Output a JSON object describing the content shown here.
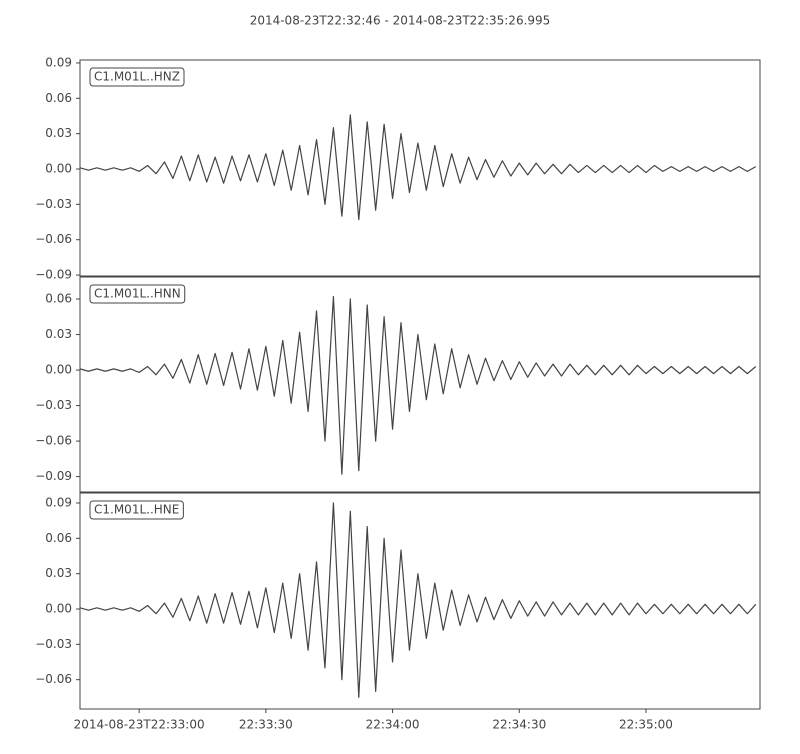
{
  "title": "2014-08-23T22:32:46  -  2014-08-23T22:35:26.995",
  "chart_data": [
    {
      "type": "line",
      "ylim": [
        -0.0908,
        0.0925
      ],
      "xlim": [
        "22:32:46",
        "22:35:26.995"
      ],
      "yticks": [
        0.09,
        0.06,
        0.03,
        {
          "value": 0,
          "label": "0.00"
        },
        {
          "value": -0.03,
          "label": "−0.03"
        },
        {
          "value": -0.06,
          "label": "−0.06"
        },
        {
          "value": -0.09,
          "label": "−0.09"
        }
      ],
      "x": [
        "22:32:46",
        "22:32:48",
        "22:32:50",
        "22:32:52",
        "22:32:54",
        "22:32:56",
        "22:32:58",
        "22:33:00",
        "22:33:02",
        "22:33:04",
        "22:33:06",
        "22:33:08",
        "22:33:10",
        "22:33:12",
        "22:33:14",
        "22:33:16",
        "22:33:18",
        "22:33:20",
        "22:33:22",
        "22:33:24",
        "22:33:26",
        "22:33:28",
        "22:33:30",
        "22:33:32",
        "22:33:34",
        "22:33:36",
        "22:33:38",
        "22:33:40",
        "22:33:42",
        "22:33:44",
        "22:33:46",
        "22:33:48",
        "22:33:50",
        "22:33:52",
        "22:33:54",
        "22:33:56",
        "22:33:58",
        "22:34:00",
        "22:34:02",
        "22:34:04",
        "22:34:06",
        "22:34:08",
        "22:34:10",
        "22:34:12",
        "22:34:14",
        "22:34:16",
        "22:34:18",
        "22:34:20",
        "22:34:22",
        "22:34:24",
        "22:34:26",
        "22:34:28",
        "22:34:30",
        "22:34:32",
        "22:34:34",
        "22:34:36",
        "22:34:38",
        "22:34:40",
        "22:34:42",
        "22:34:44",
        "22:34:46",
        "22:34:48",
        "22:34:50",
        "22:34:52",
        "22:34:54",
        "22:34:56",
        "22:34:58",
        "22:35:00",
        "22:35:02",
        "22:35:04",
        "22:35:06",
        "22:35:08",
        "22:35:10",
        "22:35:12",
        "22:35:14",
        "22:35:16",
        "22:35:18",
        "22:35:20",
        "22:35:22",
        "22:35:24",
        "22:35:26"
      ],
      "series": [
        {
          "name": "C1.M01L..HNZ",
          "color": "#444444",
          "values": [
            0.001,
            -0.001,
            0.001,
            -0.001,
            0.001,
            -0.001,
            0.001,
            -0.002,
            0.003,
            -0.004,
            0.006,
            -0.008,
            0.011,
            -0.01,
            0.012,
            -0.011,
            0.01,
            -0.012,
            0.011,
            -0.01,
            0.012,
            -0.011,
            0.013,
            -0.014,
            0.016,
            -0.018,
            0.02,
            -0.022,
            0.025,
            -0.03,
            0.035,
            -0.04,
            0.046,
            -0.043,
            0.04,
            -0.035,
            0.038,
            -0.025,
            0.03,
            -0.02,
            0.022,
            -0.018,
            0.02,
            -0.015,
            0.013,
            -0.012,
            0.01,
            -0.009,
            0.008,
            -0.007,
            0.007,
            -0.006,
            0.005,
            -0.005,
            0.005,
            -0.004,
            0.004,
            -0.004,
            0.004,
            -0.003,
            0.003,
            -0.003,
            0.003,
            -0.003,
            0.003,
            -0.003,
            0.003,
            -0.003,
            0.003,
            -0.002,
            0.002,
            -0.002,
            0.002,
            -0.002,
            0.002,
            -0.002,
            0.002,
            -0.002,
            0.002,
            -0.002,
            0.002
          ]
        }
      ]
    },
    {
      "type": "line",
      "ylim": [
        -0.103,
        0.0786
      ],
      "xlim": [
        "22:32:46",
        "22:35:26.995"
      ],
      "yticks": [
        0.06,
        0.03,
        {
          "value": 0,
          "label": "0.00"
        },
        {
          "value": -0.03,
          "label": "−0.03"
        },
        {
          "value": -0.06,
          "label": "−0.06"
        },
        {
          "value": -0.09,
          "label": "−0.09"
        }
      ],
      "x": [
        "22:32:46",
        "22:32:48",
        "22:32:50",
        "22:32:52",
        "22:32:54",
        "22:32:56",
        "22:32:58",
        "22:33:00",
        "22:33:02",
        "22:33:04",
        "22:33:06",
        "22:33:08",
        "22:33:10",
        "22:33:12",
        "22:33:14",
        "22:33:16",
        "22:33:18",
        "22:33:20",
        "22:33:22",
        "22:33:24",
        "22:33:26",
        "22:33:28",
        "22:33:30",
        "22:33:32",
        "22:33:34",
        "22:33:36",
        "22:33:38",
        "22:33:40",
        "22:33:42",
        "22:33:44",
        "22:33:46",
        "22:33:48",
        "22:33:50",
        "22:33:52",
        "22:33:54",
        "22:33:56",
        "22:33:58",
        "22:34:00",
        "22:34:02",
        "22:34:04",
        "22:34:06",
        "22:34:08",
        "22:34:10",
        "22:34:12",
        "22:34:14",
        "22:34:16",
        "22:34:18",
        "22:34:20",
        "22:34:22",
        "22:34:24",
        "22:34:26",
        "22:34:28",
        "22:34:30",
        "22:34:32",
        "22:34:34",
        "22:34:36",
        "22:34:38",
        "22:34:40",
        "22:34:42",
        "22:34:44",
        "22:34:46",
        "22:34:48",
        "22:34:50",
        "22:34:52",
        "22:34:54",
        "22:34:56",
        "22:34:58",
        "22:35:00",
        "22:35:02",
        "22:35:04",
        "22:35:06",
        "22:35:08",
        "22:35:10",
        "22:35:12",
        "22:35:14",
        "22:35:16",
        "22:35:18",
        "22:35:20",
        "22:35:22",
        "22:35:24",
        "22:35:26"
      ],
      "series": [
        {
          "name": "C1.M01L..HNN",
          "color": "#444444",
          "values": [
            0.001,
            -0.001,
            0.001,
            -0.001,
            0.001,
            -0.001,
            0.001,
            -0.002,
            0.003,
            -0.004,
            0.005,
            -0.007,
            0.009,
            -0.011,
            0.013,
            -0.012,
            0.014,
            -0.013,
            0.015,
            -0.016,
            0.018,
            -0.017,
            0.02,
            -0.022,
            0.025,
            -0.028,
            0.032,
            -0.035,
            0.05,
            -0.06,
            0.062,
            -0.088,
            0.06,
            -0.085,
            0.055,
            -0.06,
            0.045,
            -0.05,
            0.04,
            -0.035,
            0.03,
            -0.025,
            0.022,
            -0.02,
            0.018,
            -0.015,
            0.013,
            -0.012,
            0.01,
            -0.009,
            0.008,
            -0.008,
            0.007,
            -0.006,
            0.006,
            -0.005,
            0.005,
            -0.005,
            0.005,
            -0.004,
            0.004,
            -0.004,
            0.004,
            -0.004,
            0.004,
            -0.004,
            0.004,
            -0.003,
            0.003,
            -0.003,
            0.003,
            -0.003,
            0.003,
            -0.003,
            0.003,
            -0.003,
            0.003,
            -0.003,
            0.003,
            -0.003,
            0.003
          ]
        }
      ]
    },
    {
      "type": "line",
      "ylim": [
        -0.0849,
        0.0985
      ],
      "xlim": [
        "22:32:46",
        "22:35:26.995"
      ],
      "yticks": [
        0.09,
        0.06,
        0.03,
        {
          "value": 0,
          "label": "0.00"
        },
        {
          "value": -0.03,
          "label": "−0.03"
        },
        {
          "value": -0.06,
          "label": "−0.06"
        }
      ],
      "xticks": [
        {
          "value": "22:33:00",
          "label": "2014-08-23T22:33:00"
        },
        "22:33:30",
        "22:34:00",
        "22:34:30",
        "22:35:00"
      ],
      "x": [
        "22:32:46",
        "22:32:48",
        "22:32:50",
        "22:32:52",
        "22:32:54",
        "22:32:56",
        "22:32:58",
        "22:33:00",
        "22:33:02",
        "22:33:04",
        "22:33:06",
        "22:33:08",
        "22:33:10",
        "22:33:12",
        "22:33:14",
        "22:33:16",
        "22:33:18",
        "22:33:20",
        "22:33:22",
        "22:33:24",
        "22:33:26",
        "22:33:28",
        "22:33:30",
        "22:33:32",
        "22:33:34",
        "22:33:36",
        "22:33:38",
        "22:33:40",
        "22:33:42",
        "22:33:44",
        "22:33:46",
        "22:33:48",
        "22:33:50",
        "22:33:52",
        "22:33:54",
        "22:33:56",
        "22:33:58",
        "22:34:00",
        "22:34:02",
        "22:34:04",
        "22:34:06",
        "22:34:08",
        "22:34:10",
        "22:34:12",
        "22:34:14",
        "22:34:16",
        "22:34:18",
        "22:34:20",
        "22:34:22",
        "22:34:24",
        "22:34:26",
        "22:34:28",
        "22:34:30",
        "22:34:32",
        "22:34:34",
        "22:34:36",
        "22:34:38",
        "22:34:40",
        "22:34:42",
        "22:34:44",
        "22:34:46",
        "22:34:48",
        "22:34:50",
        "22:34:52",
        "22:34:54",
        "22:34:56",
        "22:34:58",
        "22:35:00",
        "22:35:02",
        "22:35:04",
        "22:35:06",
        "22:35:08",
        "22:35:10",
        "22:35:12",
        "22:35:14",
        "22:35:16",
        "22:35:18",
        "22:35:20",
        "22:35:22",
        "22:35:24",
        "22:35:26"
      ],
      "series": [
        {
          "name": "C1.M01L..HNE",
          "color": "#444444",
          "values": [
            0.001,
            -0.001,
            0.001,
            -0.001,
            0.001,
            -0.001,
            0.001,
            -0.002,
            0.003,
            -0.004,
            0.005,
            -0.007,
            0.009,
            -0.01,
            0.011,
            -0.012,
            0.013,
            -0.012,
            0.014,
            -0.013,
            0.015,
            -0.016,
            0.018,
            -0.02,
            0.022,
            -0.025,
            0.03,
            -0.035,
            0.04,
            -0.05,
            0.09,
            -0.06,
            0.083,
            -0.075,
            0.07,
            -0.07,
            0.06,
            -0.045,
            0.05,
            -0.035,
            0.03,
            -0.025,
            0.022,
            -0.018,
            0.016,
            -0.014,
            0.012,
            -0.011,
            0.01,
            -0.009,
            0.008,
            -0.008,
            0.007,
            -0.006,
            0.006,
            -0.006,
            0.006,
            -0.005,
            0.005,
            -0.005,
            0.005,
            -0.005,
            0.005,
            -0.005,
            0.005,
            -0.005,
            0.005,
            -0.004,
            0.004,
            -0.004,
            0.004,
            -0.004,
            0.004,
            -0.004,
            0.004,
            -0.004,
            0.004,
            -0.004,
            0.004,
            -0.004,
            0.004
          ]
        }
      ]
    }
  ]
}
